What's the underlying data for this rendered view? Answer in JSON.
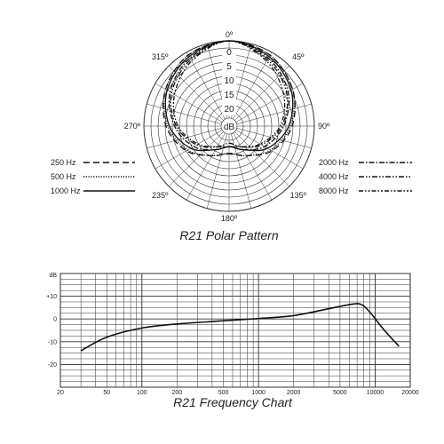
{
  "chart_data": [
    {
      "type": "polar",
      "title": "R21 Polar Pattern",
      "center_label": "dB",
      "angle_labels": [
        "0º",
        "45º",
        "90º",
        "135º",
        "180º",
        "235º",
        "270º",
        "315º"
      ],
      "radial_labels": [
        "0",
        "5",
        "10",
        "15",
        "20"
      ],
      "rlim": [
        -25,
        0
      ],
      "legend_left": [
        {
          "name": "250 Hz",
          "dash": "long-dash"
        },
        {
          "name": "500 Hz",
          "dash": "dotted"
        },
        {
          "name": "1000 Hz",
          "dash": "solid"
        }
      ],
      "legend_right": [
        {
          "name": "2000 Hz",
          "dash": "dash-dot"
        },
        {
          "name": "4000 Hz",
          "dash": "dash-dot-dot"
        },
        {
          "name": "8000 Hz",
          "dash": "dash-dot-dash"
        }
      ],
      "series": [
        {
          "name": "1000 Hz",
          "angles": [
            0,
            30,
            60,
            90,
            120,
            150,
            180,
            210,
            240,
            270,
            300,
            330
          ],
          "values": [
            0,
            -1.5,
            -4,
            -7.5,
            -12,
            -17,
            -19,
            -17,
            -12,
            -7.5,
            -4,
            -1.5
          ]
        },
        {
          "name": "500 Hz",
          "angles": [
            0,
            30,
            60,
            90,
            120,
            150,
            180,
            210,
            240,
            270,
            300,
            330
          ],
          "values": [
            0,
            -1,
            -3.5,
            -7,
            -11,
            -15,
            -17,
            -15,
            -11,
            -7,
            -3.5,
            -1
          ]
        },
        {
          "name": "250 Hz",
          "angles": [
            0,
            30,
            60,
            90,
            120,
            150,
            180,
            210,
            240,
            270,
            300,
            330
          ],
          "values": [
            0,
            -1,
            -3.5,
            -6.5,
            -10.5,
            -15,
            -17,
            -15,
            -10.5,
            -6.5,
            -3.5,
            -1
          ]
        },
        {
          "name": "2000 Hz",
          "angles": [
            0,
            30,
            60,
            90,
            120,
            150,
            180,
            210,
            240,
            270,
            300,
            330
          ],
          "values": [
            0,
            -2,
            -5,
            -9,
            -13,
            -17,
            -19,
            -17,
            -13,
            -9,
            -5,
            -2
          ]
        },
        {
          "name": "4000 Hz",
          "angles": [
            0,
            30,
            60,
            90,
            120,
            150,
            180,
            210,
            240,
            270,
            300,
            330
          ],
          "values": [
            0,
            -2.5,
            -5.5,
            -9.5,
            -14,
            -18,
            -20,
            -18,
            -14,
            -9.5,
            -5.5,
            -2.5
          ]
        },
        {
          "name": "8000 Hz",
          "angles": [
            0,
            30,
            60,
            90,
            120,
            150,
            180,
            210,
            240,
            270,
            300,
            330
          ],
          "values": [
            0,
            -3,
            -6.5,
            -10,
            -14.5,
            -18,
            -19,
            -18,
            -14.5,
            -10,
            -6.5,
            -3
          ]
        }
      ]
    },
    {
      "type": "line",
      "title": "R21 Frequency Chart",
      "x_scale": "log",
      "xlim": [
        20,
        20000
      ],
      "ylim": [
        -30,
        20
      ],
      "y_unit_label": "dB",
      "xtick_labels": [
        "20",
        "50",
        "100",
        "200",
        "500",
        "1000",
        "2000",
        "5000",
        "10000",
        "20000"
      ],
      "xtick_values": [
        20,
        50,
        100,
        200,
        500,
        1000,
        2000,
        5000,
        10000,
        20000
      ],
      "ytick_labels": [
        "+10",
        "0",
        "-10",
        "-20"
      ],
      "ytick_values": [
        10,
        0,
        -10,
        -20
      ],
      "grid": true,
      "series": [
        {
          "x": [
            30,
            50,
            100,
            200,
            500,
            1000,
            2000,
            4000,
            6000,
            7500,
            9000,
            12000,
            16000
          ],
          "y": [
            -14,
            -8,
            -4,
            -2.2,
            -0.8,
            0.2,
            1.5,
            4.5,
            6.3,
            6.5,
            3,
            -5,
            -12
          ]
        }
      ]
    }
  ]
}
